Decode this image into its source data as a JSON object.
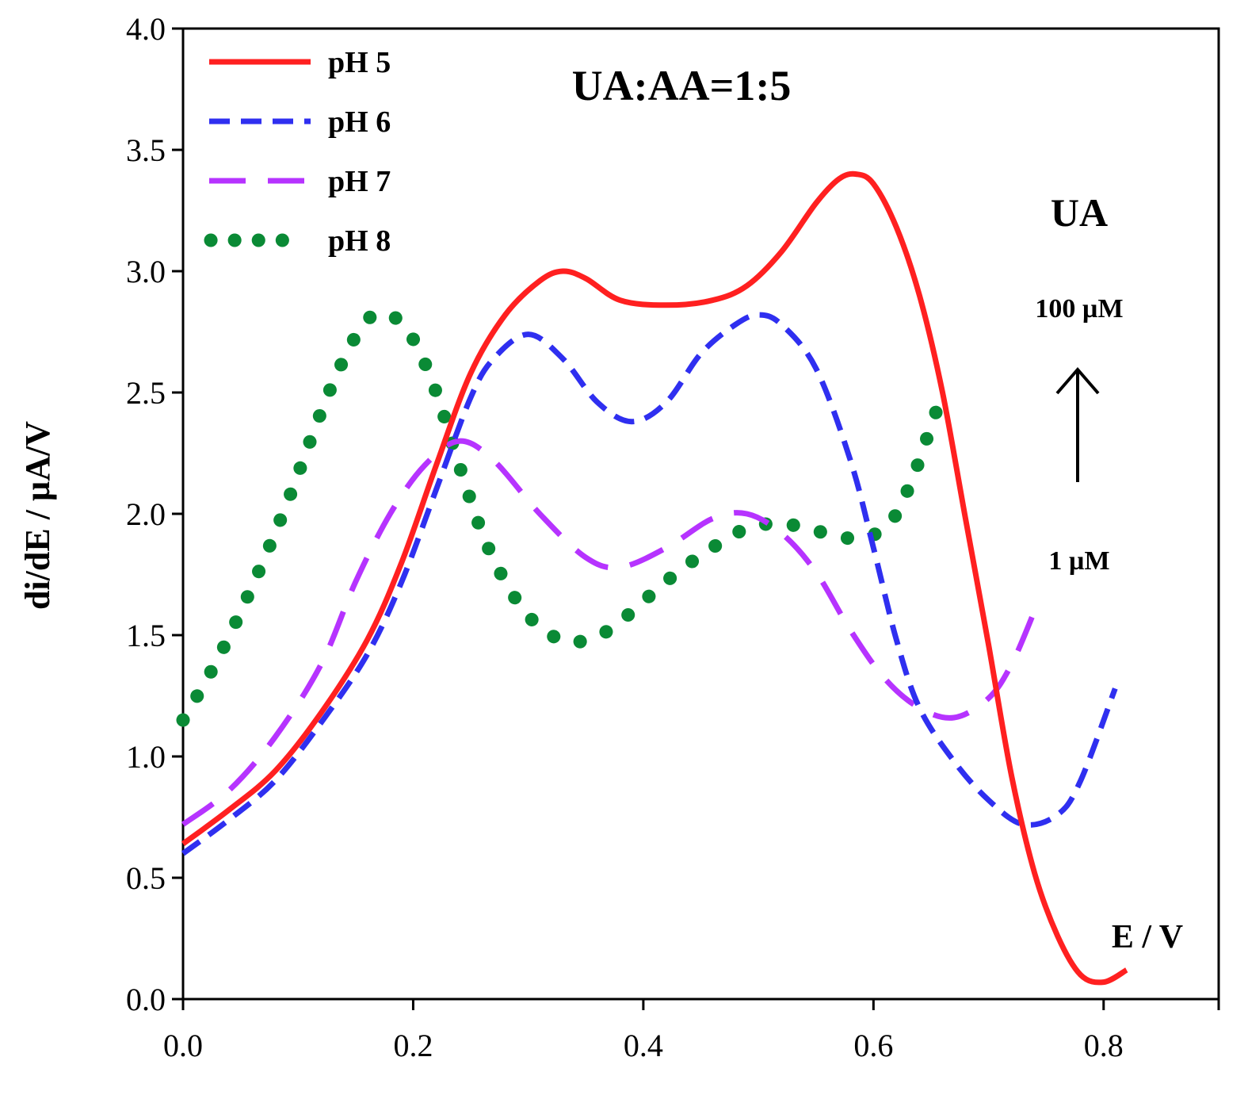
{
  "chart_data": {
    "type": "line",
    "title": "UA:AA=1:5",
    "xlabel": "E / V",
    "ylabel": "di/dE / µA/V",
    "xlim": [
      0.0,
      0.9
    ],
    "ylim": [
      0.0,
      4.0
    ],
    "x_ticks": [
      "0.0",
      "0.2",
      "0.4",
      "0.6",
      "0.8"
    ],
    "y_ticks": [
      "0.0",
      "0.5",
      "1.0",
      "1.5",
      "2.0",
      "2.5",
      "3.0",
      "3.5",
      "4.0"
    ],
    "legend_position": "top-left",
    "annotations": {
      "species": "UA",
      "upper_conc": "100 µM",
      "lower_conc": "1 µM"
    },
    "series": [
      {
        "name": "pH 5",
        "color": "#ff2020",
        "style": "solid",
        "points": [
          [
            0.0,
            0.64
          ],
          [
            0.04,
            0.78
          ],
          [
            0.08,
            0.94
          ],
          [
            0.12,
            1.18
          ],
          [
            0.16,
            1.48
          ],
          [
            0.19,
            1.8
          ],
          [
            0.22,
            2.2
          ],
          [
            0.25,
            2.58
          ],
          [
            0.28,
            2.82
          ],
          [
            0.31,
            2.96
          ],
          [
            0.33,
            3.0
          ],
          [
            0.35,
            2.97
          ],
          [
            0.38,
            2.88
          ],
          [
            0.42,
            2.86
          ],
          [
            0.46,
            2.88
          ],
          [
            0.49,
            2.94
          ],
          [
            0.52,
            3.08
          ],
          [
            0.55,
            3.28
          ],
          [
            0.57,
            3.38
          ],
          [
            0.585,
            3.4
          ],
          [
            0.6,
            3.36
          ],
          [
            0.62,
            3.18
          ],
          [
            0.64,
            2.9
          ],
          [
            0.66,
            2.5
          ],
          [
            0.68,
            1.98
          ],
          [
            0.7,
            1.46
          ],
          [
            0.72,
            0.92
          ],
          [
            0.74,
            0.52
          ],
          [
            0.76,
            0.26
          ],
          [
            0.78,
            0.1
          ],
          [
            0.8,
            0.07
          ],
          [
            0.82,
            0.12
          ]
        ]
      },
      {
        "name": "pH 6",
        "color": "#2f2ff0",
        "style": "dashed",
        "points": [
          [
            0.0,
            0.6
          ],
          [
            0.04,
            0.74
          ],
          [
            0.08,
            0.9
          ],
          [
            0.12,
            1.14
          ],
          [
            0.16,
            1.42
          ],
          [
            0.19,
            1.72
          ],
          [
            0.22,
            2.1
          ],
          [
            0.25,
            2.48
          ],
          [
            0.27,
            2.64
          ],
          [
            0.3,
            2.74
          ],
          [
            0.33,
            2.64
          ],
          [
            0.36,
            2.46
          ],
          [
            0.39,
            2.38
          ],
          [
            0.42,
            2.46
          ],
          [
            0.45,
            2.66
          ],
          [
            0.48,
            2.78
          ],
          [
            0.5,
            2.82
          ],
          [
            0.52,
            2.78
          ],
          [
            0.55,
            2.6
          ],
          [
            0.58,
            2.22
          ],
          [
            0.6,
            1.86
          ],
          [
            0.62,
            1.48
          ],
          [
            0.64,
            1.2
          ],
          [
            0.67,
            0.98
          ],
          [
            0.7,
            0.82
          ],
          [
            0.73,
            0.72
          ],
          [
            0.76,
            0.76
          ],
          [
            0.78,
            0.9
          ],
          [
            0.81,
            1.28
          ]
        ]
      },
      {
        "name": "pH 7",
        "color": "#b633ff",
        "style": "dashed",
        "points": [
          [
            0.0,
            0.72
          ],
          [
            0.04,
            0.86
          ],
          [
            0.08,
            1.08
          ],
          [
            0.12,
            1.38
          ],
          [
            0.15,
            1.72
          ],
          [
            0.18,
            2.0
          ],
          [
            0.21,
            2.2
          ],
          [
            0.24,
            2.3
          ],
          [
            0.27,
            2.22
          ],
          [
            0.31,
            2.0
          ],
          [
            0.35,
            1.82
          ],
          [
            0.38,
            1.78
          ],
          [
            0.42,
            1.86
          ],
          [
            0.46,
            1.98
          ],
          [
            0.49,
            2.0
          ],
          [
            0.52,
            1.92
          ],
          [
            0.55,
            1.76
          ],
          [
            0.58,
            1.52
          ],
          [
            0.61,
            1.32
          ],
          [
            0.64,
            1.2
          ],
          [
            0.67,
            1.16
          ],
          [
            0.7,
            1.24
          ],
          [
            0.72,
            1.38
          ],
          [
            0.74,
            1.6
          ]
        ]
      },
      {
        "name": "pH 8",
        "color": "#0a8a35",
        "style": "dotted",
        "points": [
          [
            0.0,
            1.15
          ],
          [
            0.03,
            1.4
          ],
          [
            0.06,
            1.7
          ],
          [
            0.09,
            2.04
          ],
          [
            0.12,
            2.42
          ],
          [
            0.14,
            2.64
          ],
          [
            0.16,
            2.8
          ],
          [
            0.18,
            2.82
          ],
          [
            0.2,
            2.72
          ],
          [
            0.22,
            2.5
          ],
          [
            0.24,
            2.2
          ],
          [
            0.26,
            1.92
          ],
          [
            0.28,
            1.72
          ],
          [
            0.3,
            1.58
          ],
          [
            0.32,
            1.5
          ],
          [
            0.34,
            1.47
          ],
          [
            0.37,
            1.52
          ],
          [
            0.4,
            1.64
          ],
          [
            0.43,
            1.76
          ],
          [
            0.46,
            1.86
          ],
          [
            0.49,
            1.94
          ],
          [
            0.52,
            1.96
          ],
          [
            0.55,
            1.93
          ],
          [
            0.58,
            1.9
          ],
          [
            0.61,
            1.94
          ],
          [
            0.63,
            2.1
          ],
          [
            0.65,
            2.36
          ],
          [
            0.66,
            2.5
          ]
        ]
      }
    ]
  }
}
